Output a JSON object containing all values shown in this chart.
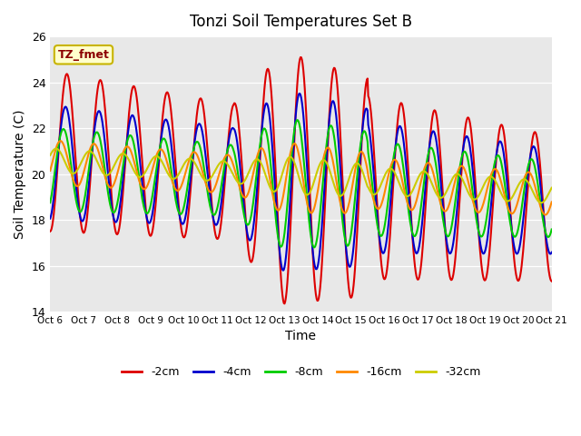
{
  "title": "Tonzi Soil Temperatures Set B",
  "xlabel": "Time",
  "ylabel": "Soil Temperature (C)",
  "ylim": [
    14,
    26
  ],
  "xlim": [
    0,
    360
  ],
  "background_color": "#e8e8e8",
  "annotation_text": "TZ_fmet",
  "annotation_color": "#8b0000",
  "annotation_bg": "#ffffcc",
  "annotation_border": "#c8b400",
  "series": {
    "-2cm": {
      "color": "#dd0000",
      "lw": 1.5
    },
    "-4cm": {
      "color": "#0000cc",
      "lw": 1.5
    },
    "-8cm": {
      "color": "#00cc00",
      "lw": 1.5
    },
    "-16cm": {
      "color": "#ff8800",
      "lw": 1.5
    },
    "-32cm": {
      "color": "#cccc00",
      "lw": 1.5
    }
  },
  "tick_labels": [
    "Oct 6",
    "Oct 7",
    "Oct 8",
    "Oct 9",
    "Oct 10",
    "Oct 11",
    "Oct 12",
    "Oct 13",
    "Oct 14",
    "Oct 15",
    "Oct 16",
    "Oct 17",
    "Oct 18",
    "Oct 19",
    "Oct 20",
    "Oct 21"
  ],
  "yticks": [
    14,
    16,
    18,
    20,
    22,
    24,
    26
  ]
}
